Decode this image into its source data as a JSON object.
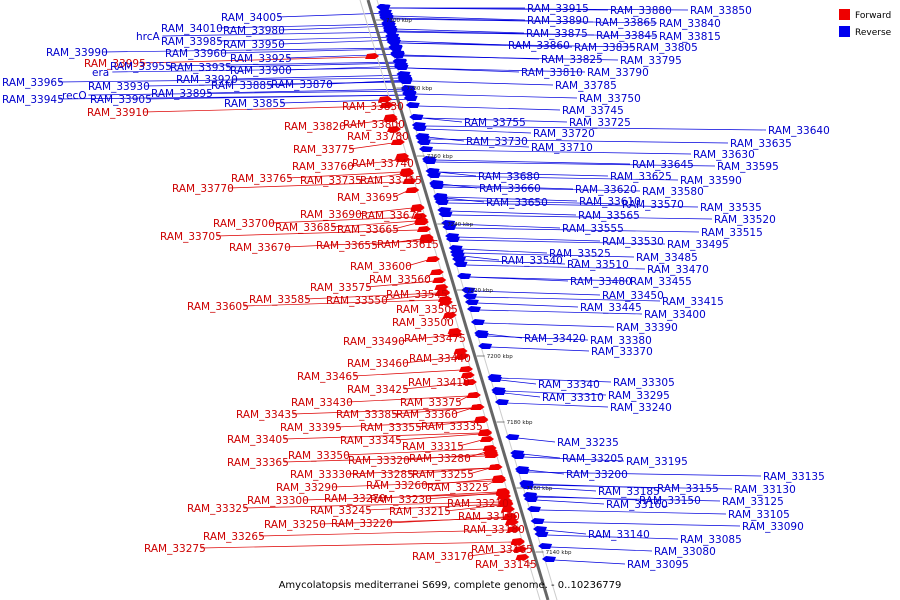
{
  "caption": "Amycolatopsis mediterranei S699, complete genome. - 0..10236779",
  "legend": {
    "forward_label": "Forward",
    "reverse_label": "Reverse",
    "forward_color": "#ee0000",
    "reverse_color": "#0000ee"
  },
  "ticks": [
    "7300 kbp",
    "7280 kbp",
    "7260 kbp",
    "7240 kbp",
    "7220 kbp",
    "7200 kbp",
    "7180 kbp",
    "7160 kbp",
    "7140 kbp"
  ],
  "forward_genes": [
    "RAM_33995",
    "RAM_33910",
    "RAM_33830",
    "RAM_33820",
    "RAM_33800",
    "RAM_33780",
    "RAM_33775",
    "RAM_33760",
    "RAM_33740",
    "RAM_33770",
    "RAM_33765",
    "RAM_33735",
    "RAM_33715",
    "RAM_33695",
    "RAM_33705",
    "RAM_33700",
    "RAM_33690",
    "RAM_33685",
    "RAM_33675",
    "RAM_33665",
    "RAM_33670",
    "RAM_33655",
    "RAM_33615",
    "RAM_33600",
    "RAM_33560",
    "RAM_33575",
    "RAM_33585",
    "RAM_33550",
    "RAM_33545",
    "RAM_33605",
    "RAM_33505",
    "RAM_33500",
    "RAM_33490",
    "RAM_33475",
    "RAM_33460",
    "RAM_33440",
    "RAM_33465",
    "RAM_33425",
    "RAM_33410",
    "RAM_33430",
    "RAM_33375",
    "RAM_33435",
    "RAM_33385",
    "RAM_33360",
    "RAM_33395",
    "RAM_33355",
    "RAM_33335",
    "RAM_33405",
    "RAM_33345",
    "RAM_33315",
    "RAM_33350",
    "RAM_33320",
    "RAM_33280",
    "RAM_33365",
    "RAM_33330",
    "RAM_33285",
    "RAM_33255",
    "RAM_33290",
    "RAM_33260",
    "RAM_33225",
    "RAM_33300",
    "RAM_33270",
    "RAM_33230",
    "RAM_33210",
    "RAM_33325",
    "RAM_33245",
    "RAM_33215",
    "RAM_33190",
    "RAM_33250",
    "RAM_33220",
    "RAM_33180",
    "RAM_33265",
    "RAM_33275",
    "RAM_33165",
    "RAM_33170",
    "RAM_33145"
  ],
  "reverse_genes": [
    "RAM_34005",
    "RAM_34010",
    "hrcA",
    "RAM_33980",
    "RAM_33985",
    "RAM_33950",
    "RAM_33990",
    "RAM_33960",
    "RAM_33925",
    "RAM_33955",
    "RAM_33935",
    "RAM_33900",
    "era",
    "RAM_33920",
    "RAM_33965",
    "RAM_33930",
    "RAM_33885",
    "RAM_33870",
    "recO",
    "RAM_33895",
    "RAM_33945",
    "RAM_33905",
    "RAM_33855",
    "RAM_33915",
    "RAM_33880",
    "RAM_33850",
    "RAM_33890",
    "RAM_33865",
    "RAM_33840",
    "RAM_33875",
    "RAM_33845",
    "RAM_33815",
    "RAM_33860",
    "RAM_33835",
    "RAM_33805",
    "RAM_33825",
    "RAM_33795",
    "RAM_33810",
    "RAM_33790",
    "RAM_33785",
    "RAM_33750",
    "RAM_33745",
    "RAM_33755",
    "RAM_33725",
    "RAM_33720",
    "RAM_33730",
    "RAM_33710",
    "RAM_33640",
    "RAM_33635",
    "RAM_33630",
    "RAM_33645",
    "RAM_33595",
    "RAM_33625",
    "RAM_33590",
    "RAM_33680",
    "RAM_33620",
    "RAM_33580",
    "RAM_33660",
    "RAM_33650",
    "RAM_33610",
    "RAM_33570",
    "RAM_33535",
    "RAM_33565",
    "RAM_33520",
    "RAM_33555",
    "RAM_33515",
    "RAM_33530",
    "RAM_33495",
    "RAM_33525",
    "RAM_33485",
    "RAM_33540",
    "RAM_33510",
    "RAM_33470",
    "RAM_33480",
    "RAM_33455",
    "RAM_33450",
    "RAM_33415",
    "RAM_33445",
    "RAM_33400",
    "RAM_33390",
    "RAM_33420",
    "RAM_33380",
    "RAM_33370",
    "RAM_33340",
    "RAM_33305",
    "RAM_33310",
    "RAM_33295",
    "RAM_33240",
    "RAM_33235",
    "RAM_33205",
    "RAM_33195",
    "RAM_33200",
    "RAM_33185",
    "RAM_33155",
    "RAM_33135",
    "RAM_33130",
    "RAM_33150",
    "RAM_33125",
    "RAM_33160",
    "RAM_33105",
    "RAM_33090",
    "RAM_33140",
    "RAM_33085",
    "RAM_33080",
    "RAM_33095"
  ]
}
